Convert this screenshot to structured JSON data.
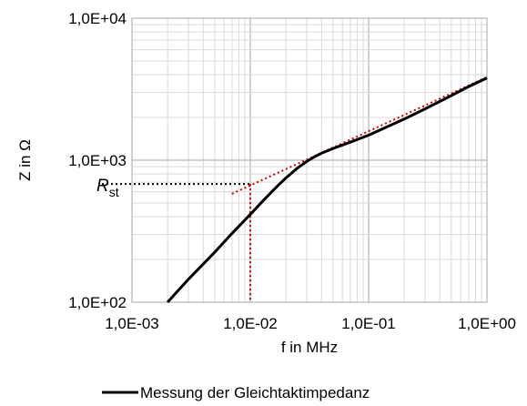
{
  "chart_data": {
    "type": "line",
    "xlabel": "f in MHz",
    "ylabel": "Z in Ω",
    "x_scale": "log",
    "y_scale": "log",
    "xlim": [
      0.001,
      1.0
    ],
    "ylim": [
      100,
      10000
    ],
    "x_tick_labels": [
      "1,0E-03",
      "1,0E-02",
      "1,0E-01",
      "1,0E+00"
    ],
    "y_tick_labels": [
      "1,0E+04",
      "1,0E+03",
      "1,0E+02"
    ],
    "grid": true,
    "legend_position": "bottom",
    "series": [
      {
        "name": "Messung der Gleichtaktimpedanz",
        "color": "#000000",
        "style": "solid",
        "x": [
          0.002,
          0.003,
          0.005,
          0.007,
          0.01,
          0.013,
          0.017,
          0.02,
          0.025,
          0.03,
          0.035,
          0.04,
          0.05,
          0.07,
          0.1,
          0.15,
          0.2,
          0.3,
          0.5,
          0.7,
          1.0
        ],
        "y": [
          100,
          145,
          225,
          305,
          415,
          525,
          660,
          750,
          880,
          980,
          1060,
          1120,
          1210,
          1340,
          1500,
          1750,
          1950,
          2300,
          2850,
          3300,
          3800
        ]
      }
    ],
    "annotations": {
      "asymptote": {
        "color": "#cc0000",
        "style": "dotted",
        "x": [
          0.007,
          1.0
        ],
        "y": [
          580,
          3850
        ]
      },
      "vertical_marker": {
        "color": "#cc0000",
        "style": "dotted",
        "x": 0.01
      },
      "rst_line": {
        "color": "#000000",
        "style": "dotted",
        "y": 680,
        "x_end": 0.01
      },
      "rst_label": {
        "main": "R",
        "sub": "st"
      }
    }
  }
}
